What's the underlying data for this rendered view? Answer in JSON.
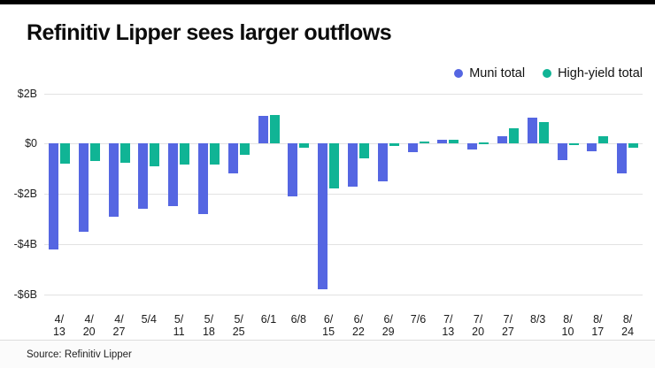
{
  "title": "Refinitiv Lipper sees larger outflows",
  "source": "Source: Refinitiv Lipper",
  "legend": [
    {
      "label": "Muni total",
      "color": "#5566e2"
    },
    {
      "label": "High-yield total",
      "color": "#10b495"
    }
  ],
  "chart_data": {
    "type": "bar",
    "title": "Refinitiv Lipper sees larger outflows",
    "unit": "billions USD",
    "categories": [
      "4/13",
      "4/20",
      "4/27",
      "5/4",
      "5/11",
      "5/18",
      "5/25",
      "6/1",
      "6/8",
      "6/15",
      "6/22",
      "6/29",
      "7/6",
      "7/13",
      "7/20",
      "7/27",
      "8/3",
      "8/10",
      "8/17",
      "8/24"
    ],
    "series": [
      {
        "name": "Muni total",
        "color": "#5566e2",
        "values": [
          -4.2,
          -3.5,
          -2.9,
          -2.6,
          -2.5,
          -2.8,
          -1.2,
          1.1,
          -2.1,
          -5.8,
          -1.7,
          -1.5,
          -0.35,
          0.15,
          -0.25,
          0.3,
          1.05,
          -0.65,
          -0.3,
          -1.2
        ]
      },
      {
        "name": "High-yield total",
        "color": "#10b495",
        "values": [
          -0.8,
          -0.7,
          -0.75,
          -0.9,
          -0.85,
          -0.85,
          -0.45,
          1.15,
          -0.15,
          -1.8,
          -0.6,
          -0.1,
          0.1,
          0.15,
          0.05,
          0.6,
          0.85,
          -0.05,
          0.3,
          -0.15
        ]
      }
    ],
    "y_ticks": [
      {
        "label": "$2B",
        "value": 2
      },
      {
        "label": "$0",
        "value": 0
      },
      {
        "label": "-$2B",
        "value": -2
      },
      {
        "label": "-$4B",
        "value": -4
      },
      {
        "label": "-$6B",
        "value": -6
      }
    ],
    "ylim": [
      -6.5,
      2.3
    ],
    "grid": true,
    "legend_position": "top-right"
  }
}
